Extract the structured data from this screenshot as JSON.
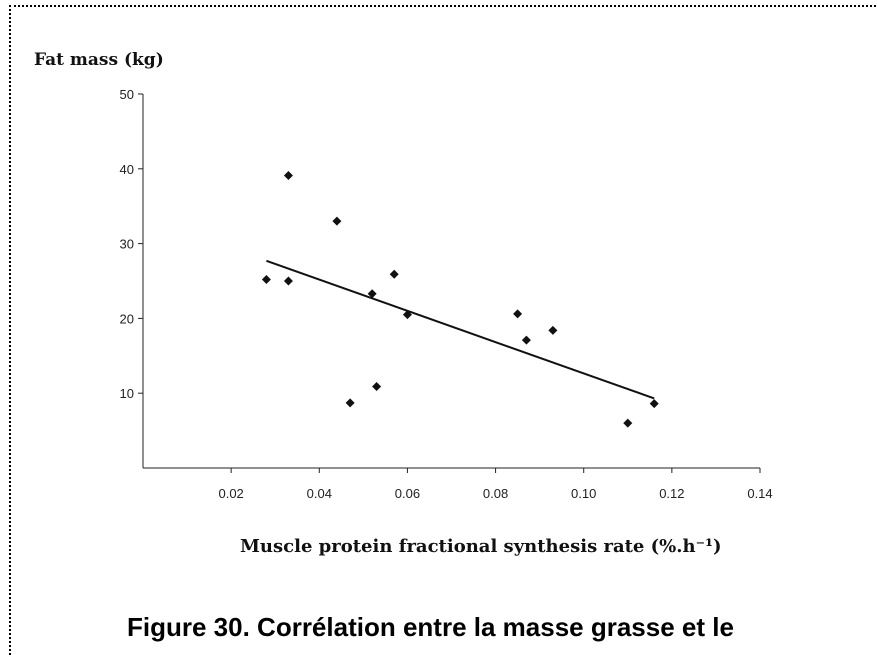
{
  "chart_data": {
    "type": "scatter",
    "ylabel": "Fat mass (kg)",
    "xlabel": "Muscle protein fractional synthesis rate (%.h⁻¹)",
    "xlim": [
      0,
      0.14
    ],
    "ylim": [
      0,
      50
    ],
    "x_ticks": [
      "0.02",
      "0.04",
      "0.06",
      "0.08",
      "0.10",
      "0.12",
      "0.14"
    ],
    "y_ticks": [
      "10",
      "20",
      "30",
      "40",
      "50"
    ],
    "points": [
      {
        "x": 0.028,
        "y": 25.2
      },
      {
        "x": 0.033,
        "y": 39.1
      },
      {
        "x": 0.033,
        "y": 25.0
      },
      {
        "x": 0.044,
        "y": 33.0
      },
      {
        "x": 0.047,
        "y": 8.7
      },
      {
        "x": 0.052,
        "y": 23.3
      },
      {
        "x": 0.053,
        "y": 10.9
      },
      {
        "x": 0.057,
        "y": 25.9
      },
      {
        "x": 0.06,
        "y": 20.5
      },
      {
        "x": 0.085,
        "y": 20.6
      },
      {
        "x": 0.087,
        "y": 17.1
      },
      {
        "x": 0.093,
        "y": 18.4
      },
      {
        "x": 0.11,
        "y": 6.0
      },
      {
        "x": 0.116,
        "y": 8.6
      }
    ],
    "trendline": [
      {
        "x": 0.028,
        "y": 27.7
      },
      {
        "x": 0.116,
        "y": 9.3
      }
    ],
    "grid": false,
    "legend": "none"
  },
  "caption": "Figure 30. Corrélation entre la masse grasse et le"
}
